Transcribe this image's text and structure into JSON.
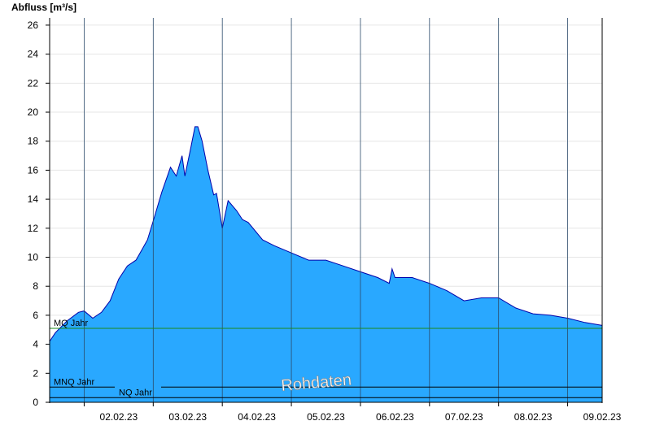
{
  "chart_data": {
    "type": "area",
    "ylabel": "Abfluss [m³/s]",
    "ylim": [
      0,
      26.5
    ],
    "yticks": [
      0,
      2,
      4,
      6,
      8,
      10,
      12,
      14,
      16,
      18,
      20,
      22,
      24,
      26
    ],
    "xlim": [
      "2023-02-01T12:00",
      "2023-02-09T12:00"
    ],
    "x_tick_labels": [
      "02.02.23",
      "03.02.23",
      "04.02.23",
      "05.02.23",
      "06.02.23",
      "07.02.23",
      "08.02.23",
      "09.02.23"
    ],
    "fill_color": "#29a8ff",
    "line_color": "#0000aa",
    "grid": true,
    "watermark": "Rohdaten",
    "reference_lines": [
      {
        "label": "MQ Jahr",
        "value": 5.1,
        "color": "#1a8a1a"
      },
      {
        "label": "MNQ Jahr",
        "value": 1.05,
        "color": "#000000"
      },
      {
        "label": "NQ Jahr",
        "value": 0.32,
        "color": "#000000"
      }
    ],
    "series": [
      {
        "x": [
          "2023-02-01T12:00",
          "2023-02-01T14:00",
          "2023-02-01T18:00",
          "2023-02-01T22:00",
          "2023-02-02T00:00",
          "2023-02-02T03:00",
          "2023-02-02T06:00",
          "2023-02-02T09:00",
          "2023-02-02T12:00",
          "2023-02-02T15:00",
          "2023-02-02T18:00",
          "2023-02-02T20:00",
          "2023-02-02T22:00",
          "2023-02-03T00:00",
          "2023-02-03T03:00",
          "2023-02-03T06:00",
          "2023-02-03T08:00",
          "2023-02-03T10:00",
          "2023-02-03T11:00",
          "2023-02-03T13:00",
          "2023-02-03T14:30",
          "2023-02-03T15:30",
          "2023-02-03T17:00",
          "2023-02-03T19:00",
          "2023-02-03T21:00",
          "2023-02-03T22:00",
          "2023-02-04T00:00",
          "2023-02-04T02:00",
          "2023-02-04T05:00",
          "2023-02-04T07:00",
          "2023-02-04T08:00",
          "2023-02-04T09:00",
          "2023-02-04T14:00",
          "2023-02-04T18:00",
          "2023-02-05T00:00",
          "2023-02-05T06:00",
          "2023-02-05T12:00",
          "2023-02-05T18:00",
          "2023-02-06T00:00",
          "2023-02-06T06:00",
          "2023-02-06T10:00",
          "2023-02-06T11:00",
          "2023-02-06T12:00",
          "2023-02-06T18:00",
          "2023-02-07T00:00",
          "2023-02-07T06:00",
          "2023-02-07T12:00",
          "2023-02-07T18:00",
          "2023-02-08T00:00",
          "2023-02-08T06:00",
          "2023-02-08T12:00",
          "2023-02-08T18:00",
          "2023-02-09T00:00",
          "2023-02-09T06:00",
          "2023-02-09T12:00"
        ],
        "values": [
          4.2,
          4.8,
          5.6,
          6.2,
          6.3,
          5.8,
          6.2,
          7.0,
          8.5,
          9.4,
          9.8,
          10.5,
          11.2,
          12.5,
          14.5,
          16.2,
          15.6,
          17.0,
          15.6,
          17.5,
          19.0,
          19.0,
          18.0,
          16.0,
          14.3,
          14.4,
          12.0,
          13.9,
          13.2,
          12.6,
          12.5,
          12.4,
          11.2,
          10.8,
          10.3,
          9.8,
          9.8,
          9.4,
          9.0,
          8.6,
          8.2,
          9.2,
          8.6,
          8.6,
          8.2,
          7.7,
          7.0,
          7.2,
          7.2,
          6.5,
          6.1,
          6.0,
          5.8,
          5.5,
          5.3
        ]
      }
    ]
  }
}
